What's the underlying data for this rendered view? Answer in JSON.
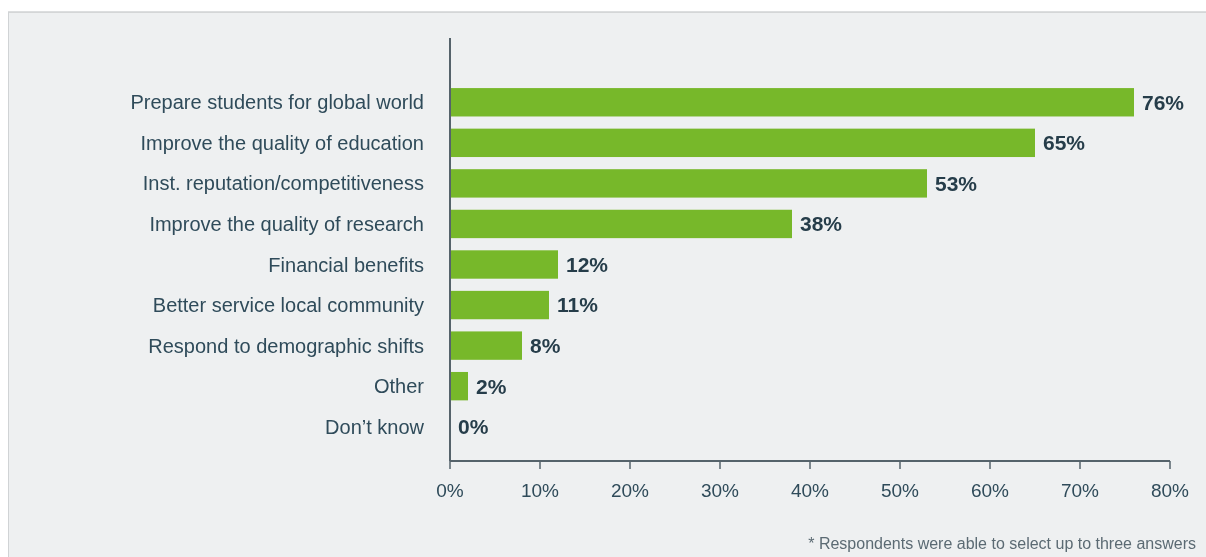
{
  "chart_data": {
    "type": "bar",
    "orientation": "horizontal",
    "categories": [
      "Prepare students for global world",
      "Improve the quality of education",
      "Inst. reputation/competitiveness",
      "Improve the quality of research",
      "Financial benefits",
      "Better service local community",
      "Respond to demographic shifts",
      "Other",
      "Don’t know"
    ],
    "values": [
      76,
      65,
      53,
      38,
      12,
      11,
      8,
      2,
      0
    ],
    "value_labels": [
      "76%",
      "65%",
      "53%",
      "38%",
      "12%",
      "11%",
      "8%",
      "2%",
      "0%"
    ],
    "color": "#77b82a",
    "xlim": [
      0,
      80
    ],
    "xticks": [
      {
        "value": 0,
        "label": "0%"
      },
      {
        "value": 10,
        "label": "10%"
      },
      {
        "value": 20,
        "label": "20%"
      },
      {
        "value": 30,
        "label": "30%"
      },
      {
        "value": 40,
        "label": "40%"
      },
      {
        "value": 50,
        "label": "50%"
      },
      {
        "value": 60,
        "label": "60%"
      },
      {
        "value": 70,
        "label": "70%"
      },
      {
        "value": 80,
        "label": "80%"
      }
    ],
    "grid": false,
    "annotations": [
      "* Respondents were able to select up to three answers"
    ]
  }
}
